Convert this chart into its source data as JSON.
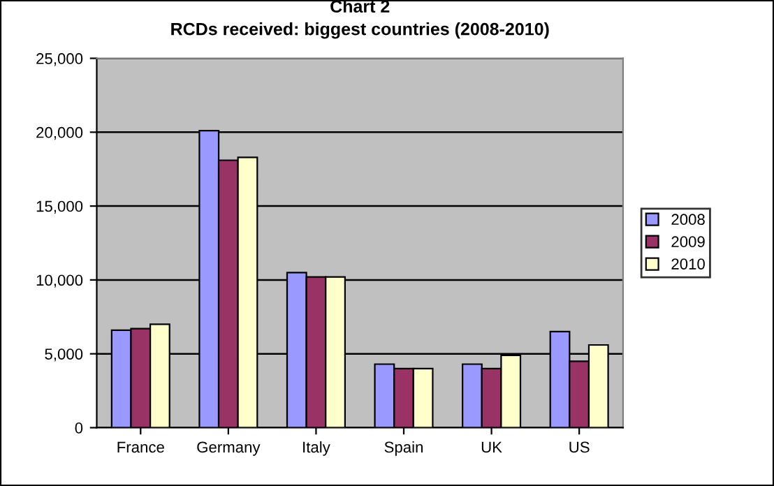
{
  "chart_data": {
    "type": "bar",
    "title": "Chart 2\nRCDs received: biggest countries (2008-2010)",
    "categories": [
      "France",
      "Germany",
      "Italy",
      "Spain",
      "UK",
      "US"
    ],
    "series": [
      {
        "name": "2008",
        "color": "#9999ff",
        "values": [
          6600,
          20100,
          10500,
          4300,
          4300,
          6500
        ]
      },
      {
        "name": "2009",
        "color": "#993366",
        "values": [
          6700,
          18100,
          10200,
          4000,
          4000,
          4500
        ]
      },
      {
        "name": "2010",
        "color": "#ffffcc",
        "values": [
          7000,
          18300,
          10200,
          4000,
          4900,
          5600
        ]
      }
    ],
    "ylim": [
      0,
      25000
    ],
    "yticks": [
      {
        "value": 0,
        "label": "0"
      },
      {
        "value": 5000,
        "label": "5,000"
      },
      {
        "value": 10000,
        "label": "10,000"
      },
      {
        "value": 15000,
        "label": "15,000"
      },
      {
        "value": 20000,
        "label": "20,000"
      },
      {
        "value": 25000,
        "label": "25,000"
      }
    ],
    "grid": "y",
    "legend": "right"
  }
}
